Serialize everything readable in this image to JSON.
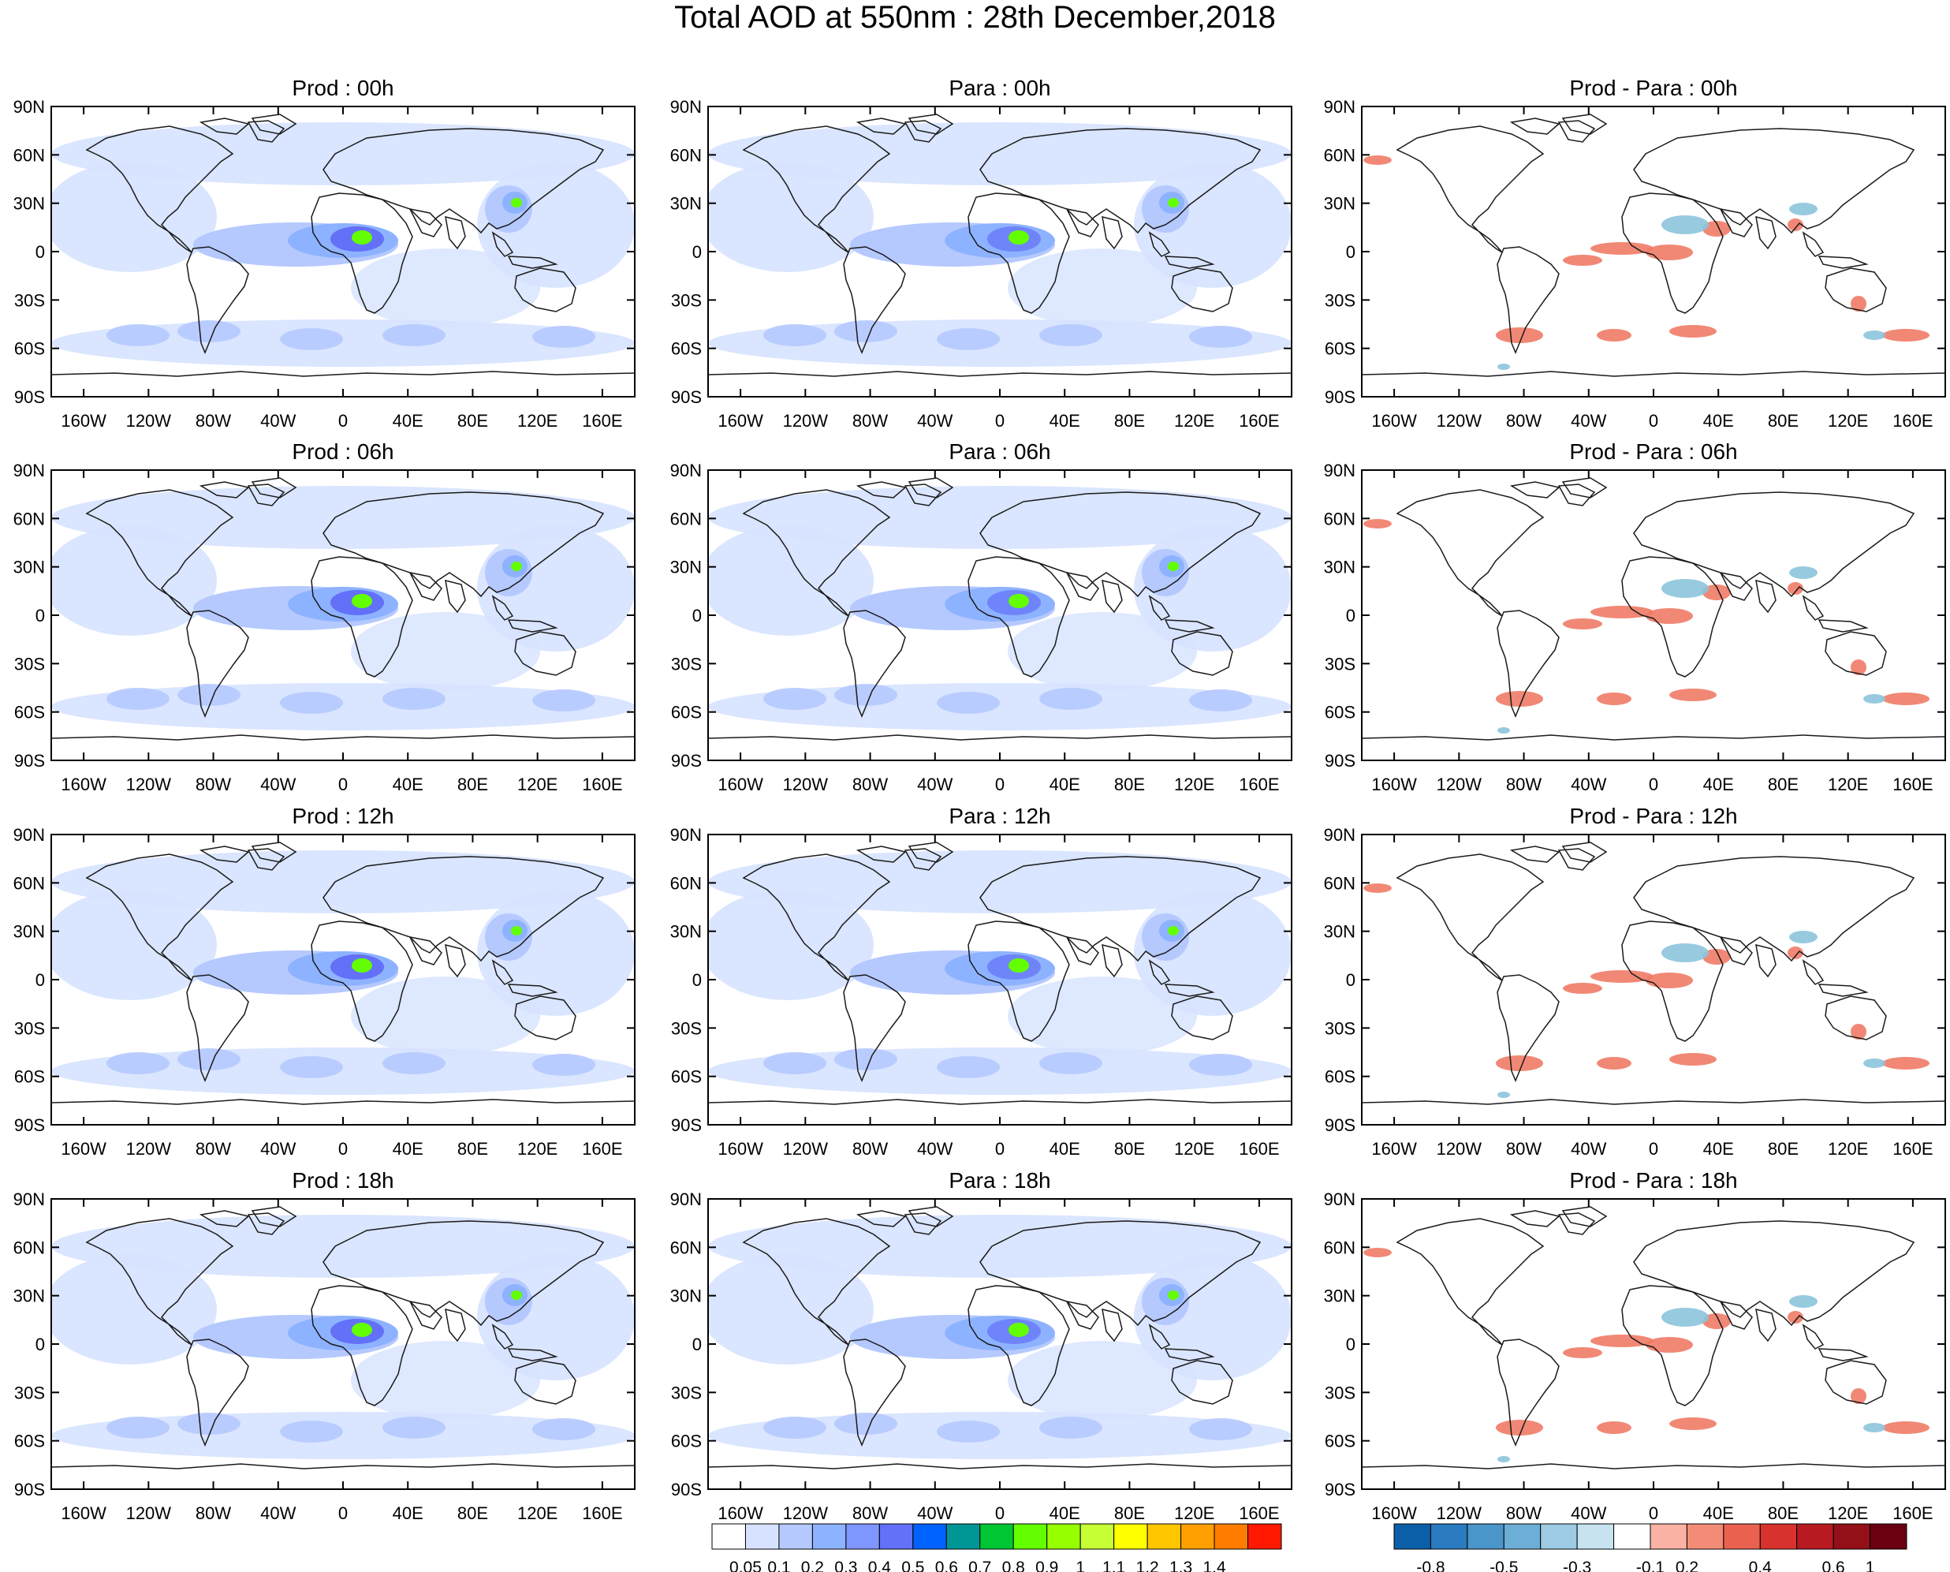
{
  "title": "Total AOD at 550nm : 28th December,2018",
  "lat_labels": [
    "90N",
    "60N",
    "30N",
    "0",
    "30S",
    "60S",
    "90S"
  ],
  "lon_labels": [
    "160W",
    "120W",
    "80W",
    "40W",
    "0",
    "40E",
    "80E",
    "120E",
    "160E"
  ],
  "columns": [
    {
      "id": "prod",
      "prefix": "Prod"
    },
    {
      "id": "para",
      "prefix": "Para"
    },
    {
      "id": "diff",
      "prefix": "Prod - Para"
    }
  ],
  "times": [
    "00h",
    "06h",
    "12h",
    "18h"
  ],
  "panel_titles": [
    [
      "Prod : 00h",
      "Para : 00h",
      "Prod - Para : 00h"
    ],
    [
      "Prod : 06h",
      "Para : 06h",
      "Prod - Para : 06h"
    ],
    [
      "Prod : 12h",
      "Para : 12h",
      "Prod - Para : 12h"
    ],
    [
      "Prod : 18h",
      "Para : 18h",
      "Prod - Para : 18h"
    ]
  ],
  "aod_colorbar": {
    "labels": [
      "0.05",
      "0.1",
      "0.2",
      "0.3",
      "0.4",
      "0.5",
      "0.6",
      "0.7",
      "0.8",
      "0.9",
      "1",
      "1.1",
      "1.2",
      "1.3",
      "1.4"
    ],
    "colors": [
      "#ffffff",
      "#d6e2ff",
      "#b5c9ff",
      "#8db2ff",
      "#7f96ff",
      "#6370f8",
      "#0063ff",
      "#009696",
      "#00c633",
      "#63ff00",
      "#96ff00",
      "#c6ff33",
      "#ffff00",
      "#ffc600",
      "#ffa000",
      "#ff7c00",
      "#ff1900"
    ]
  },
  "diff_colorbar": {
    "labels": [
      "-0.8",
      "-0.5",
      "-0.3",
      "-0.1",
      "0.2",
      "0.4",
      "0.6",
      "1"
    ],
    "colors": [
      "#0b5fa8",
      "#2a7bbf",
      "#4a95c9",
      "#6daed6",
      "#9ccbe3",
      "#c6e3ef",
      "#ffffff",
      "#f9b2a4",
      "#f38c76",
      "#ea6150",
      "#d7322d",
      "#b81a22",
      "#931018",
      "#6a0010"
    ]
  },
  "field_colors": {
    "aod_light": "#d6e2ff",
    "aod_mid": "#b5c9ff",
    "aod_high": "#8db2ff",
    "aod_higher": "#6370f8",
    "aod_peak": "#63ff00",
    "diff_pos": "#ef7b66",
    "diff_neg": "#8cc4dc"
  },
  "icons": [
    "map-coastline",
    "colorbar-triangle"
  ]
}
